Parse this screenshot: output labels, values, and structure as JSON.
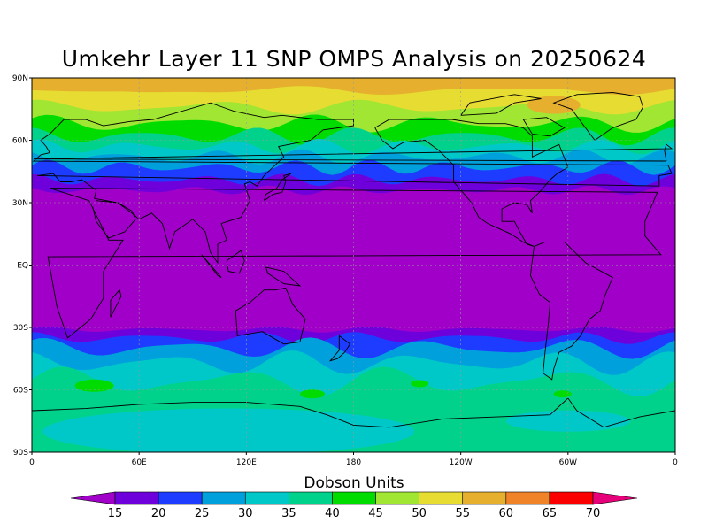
{
  "map": {
    "title": "Umkehr Layer 11 SNP OMPS Analysis on 20250624",
    "lat_labels": [
      "90N",
      "60N",
      "30N",
      "EQ",
      "30S",
      "60S",
      "90S"
    ],
    "lon_labels": [
      "0",
      "60E",
      "120E",
      "180",
      "120W",
      "60W",
      "0"
    ],
    "colorbar_title": "Dobson Units",
    "levels": [
      "15",
      "20",
      "25",
      "30",
      "35",
      "40",
      "45",
      "50",
      "55",
      "60",
      "65",
      "70"
    ],
    "colors": [
      "#a000c8",
      "#6e00dc",
      "#1e3cff",
      "#00a0dc",
      "#00c8c8",
      "#00d28c",
      "#00dc00",
      "#a0e632",
      "#e6dc32",
      "#e6af2d",
      "#f08228",
      "#fa0000",
      "#e6007a"
    ]
  }
}
